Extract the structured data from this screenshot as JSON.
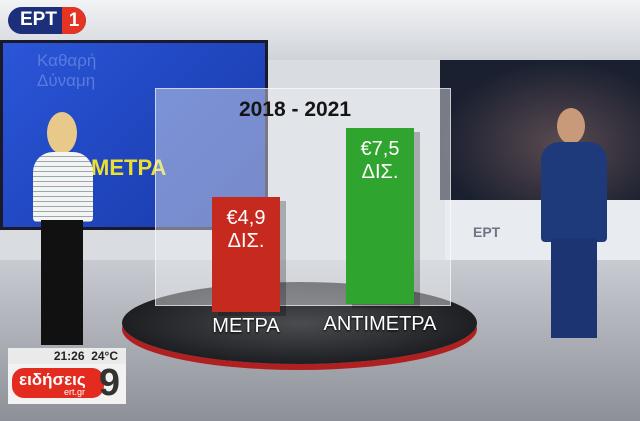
{
  "channel_logo": {
    "name": "ΕΡΤ",
    "number": "1",
    "colors": {
      "blue": "#1c2f7a",
      "red": "#e53422"
    }
  },
  "video_wall": {
    "title_line1": "Καθαρή",
    "title_line2": "Δύναμη",
    "headline": "ΜΕΤΡΑ"
  },
  "studio_screen": {
    "label": "ΕΡΤ"
  },
  "chart_data": {
    "type": "bar",
    "title": "2018 - 2021",
    "categories": [
      "ΜΕΤΡΑ",
      "ΑΝΤΙΜΕΤΡΑ"
    ],
    "values": [
      4.9,
      7.5
    ],
    "data_labels": [
      {
        "value": "€4,9",
        "unit": "ΔΙΣ."
      },
      {
        "value": "€7,5",
        "unit": "ΔΙΣ."
      }
    ],
    "colors": [
      "#c62a1e",
      "#2fa52f"
    ],
    "xlabel": "",
    "ylabel": ""
  },
  "overlay": {
    "time": "21:26",
    "temperature": "24°C",
    "show_name": "ειδήσεις",
    "website": "ert.gr",
    "number": "9"
  }
}
